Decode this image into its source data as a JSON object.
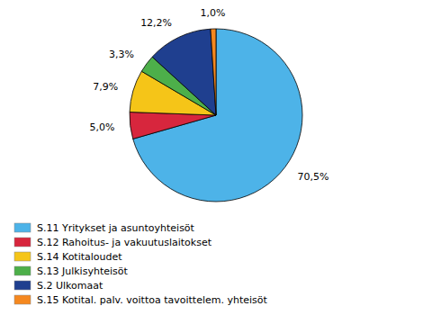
{
  "chart_data": {
    "type": "pie",
    "categories": [
      "S.11 Yritykset ja asuntoyhteisöt",
      "S.12 Rahoitus- ja vakuutuslaitokset",
      "S.14 Kotitaloudet",
      "S.13 Julkisyhteisöt",
      "S.2 Ulkomaat",
      "S.15 Kotital. palv. voittoa tavoittelem. yhteisöt"
    ],
    "values": [
      70.5,
      5.0,
      7.9,
      3.3,
      12.2,
      1.0
    ],
    "value_labels": [
      "70,5%",
      "5,0%",
      "7,9%",
      "3,3%",
      "12,2%",
      "1,0%"
    ],
    "colors": [
      "#4DB3E8",
      "#D7263D",
      "#F5C518",
      "#4DAF4A",
      "#1F3F8F",
      "#F5881F"
    ],
    "data_labels": true,
    "legend": "lower left"
  }
}
